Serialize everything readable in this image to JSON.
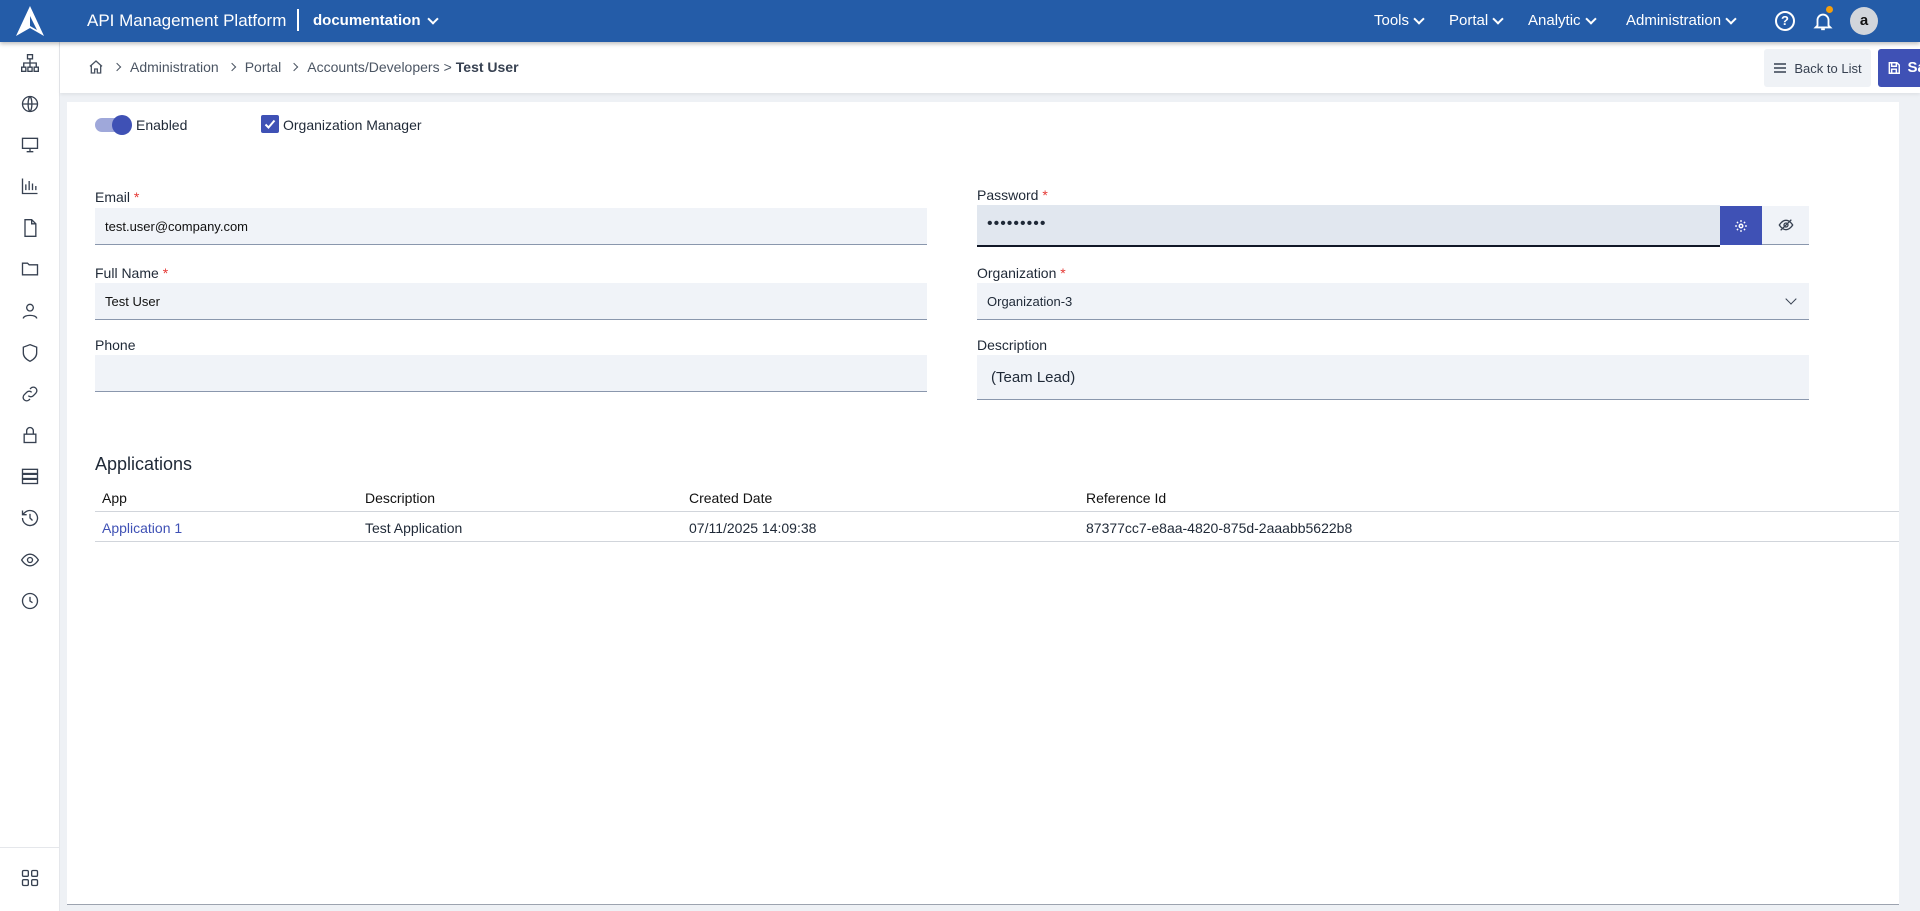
{
  "header": {
    "app_title": "API Management Platform",
    "workspace": "documentation",
    "nav": [
      {
        "label": "Tools"
      },
      {
        "label": "Portal"
      },
      {
        "label": "Analytic"
      },
      {
        "label": "Administration"
      }
    ],
    "avatar": "a",
    "help_icon": "?"
  },
  "sidebar": {
    "items": [
      "sitemap-icon",
      "globe-icon",
      "monitor-icon",
      "bar-chart-icon",
      "file-icon",
      "folder-icon",
      "user-icon",
      "shield-icon",
      "link-icon",
      "lock-icon",
      "server-icon",
      "history-icon",
      "eye-icon",
      "clock-icon"
    ],
    "bottom": "apps-grid-icon"
  },
  "breadcrumb": {
    "items": [
      "Administration",
      "Portal",
      "Accounts/Developers"
    ],
    "current": "Test User"
  },
  "toolbar": {
    "back_label": "Back to List",
    "save_label": "Save"
  },
  "form": {
    "enabled_label": "Enabled",
    "enabled": true,
    "org_manager_label": "Organization Manager",
    "org_manager": true,
    "email_label": "Email",
    "email": "test.user@company.com",
    "fullname_label": "Full Name",
    "fullname": "Test User",
    "phone_label": "Phone",
    "phone": "",
    "password_label": "Password",
    "password": "•••••••••",
    "organization_label": "Organization",
    "organization": "Organization-3",
    "description_label": "Description",
    "description": "(Team Lead)",
    "required_mark": "*"
  },
  "applications": {
    "title": "Applications",
    "columns": [
      "App",
      "Description",
      "Created Date",
      "Reference Id"
    ],
    "rows": [
      {
        "app": "Application 1",
        "description": "Test Application",
        "created": "07/11/2025 14:09:38",
        "reference": "87377cc7-e8aa-4820-875d-2aaabb5622b8"
      }
    ]
  },
  "colors": {
    "brand": "#245ca8",
    "accent": "#3f51b5",
    "required": "#e53935",
    "notification": "#f59e0b"
  }
}
